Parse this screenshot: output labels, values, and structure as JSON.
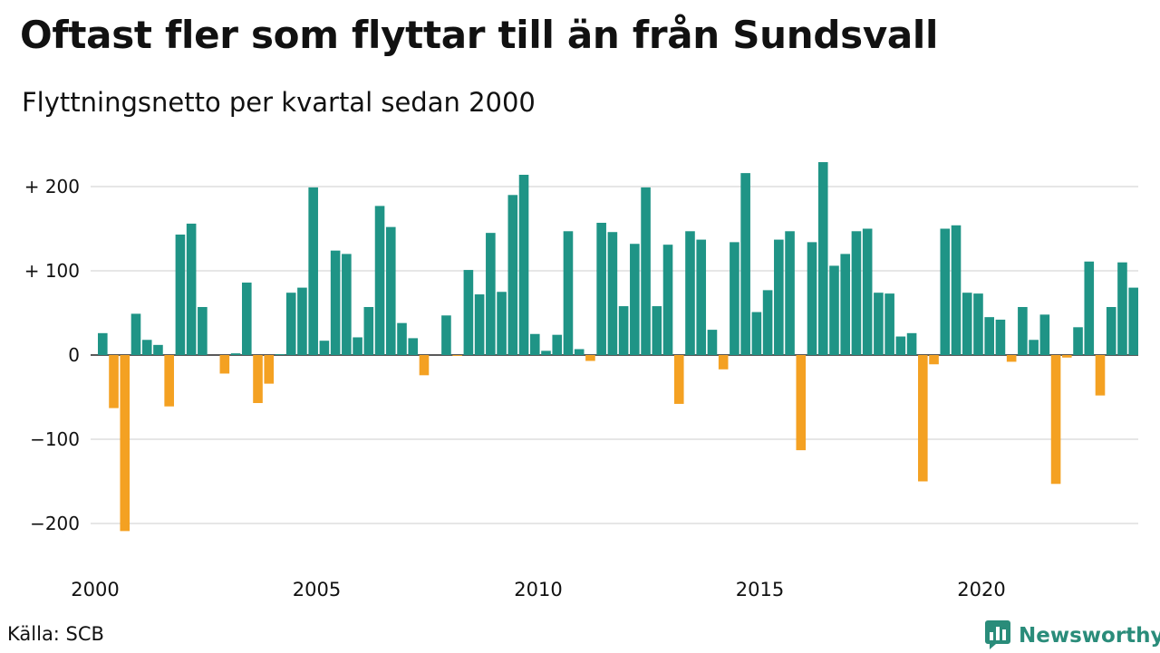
{
  "title": "Oftast fler som flyttar till än från Sundsvall",
  "subtitle": "Flyttningsnetto per kvartal sedan 2000",
  "source": "Källa: SCB",
  "brand": {
    "name": "Newsworthy",
    "icon": "bar-chart-logo-icon"
  },
  "colors": {
    "positive": "#1f9486",
    "negative": "#f4a122",
    "grid": "#dddddd",
    "brand": "#2a8c7a"
  },
  "chart_data": {
    "type": "bar",
    "x_start": "2000 Q1",
    "x_ticks": [
      "2000",
      "2005",
      "2010",
      "2015",
      "2020"
    ],
    "y_ticks": [
      {
        "value": 200,
        "label": "+ 200"
      },
      {
        "value": 100,
        "label": "+ 100"
      },
      {
        "value": 0,
        "label": "0"
      },
      {
        "value": -100,
        "label": "−100"
      },
      {
        "value": -200,
        "label": "−200"
      }
    ],
    "ylim": [
      -220,
      235
    ],
    "grid": true,
    "legend": false,
    "values": [
      26,
      -63,
      -209,
      49,
      18,
      12,
      -61,
      143,
      156,
      57,
      0,
      -22,
      2,
      86,
      -57,
      -34,
      1,
      74,
      80,
      199,
      17,
      124,
      120,
      21,
      57,
      177,
      152,
      38,
      20,
      -24,
      0,
      47,
      -1,
      101,
      72,
      145,
      75,
      190,
      214,
      25,
      5,
      24,
      147,
      7,
      -7,
      157,
      146,
      58,
      132,
      199,
      58,
      131,
      -58,
      147,
      137,
      30,
      -17,
      134,
      216,
      51,
      77,
      137,
      147,
      -113,
      134,
      229,
      106,
      120,
      147,
      150,
      74,
      73,
      22,
      26,
      -150,
      -11,
      150,
      154,
      74,
      73,
      45,
      42,
      -8,
      57,
      18,
      48,
      -153,
      -3,
      33,
      111,
      -48,
      57,
      110,
      80
    ]
  }
}
